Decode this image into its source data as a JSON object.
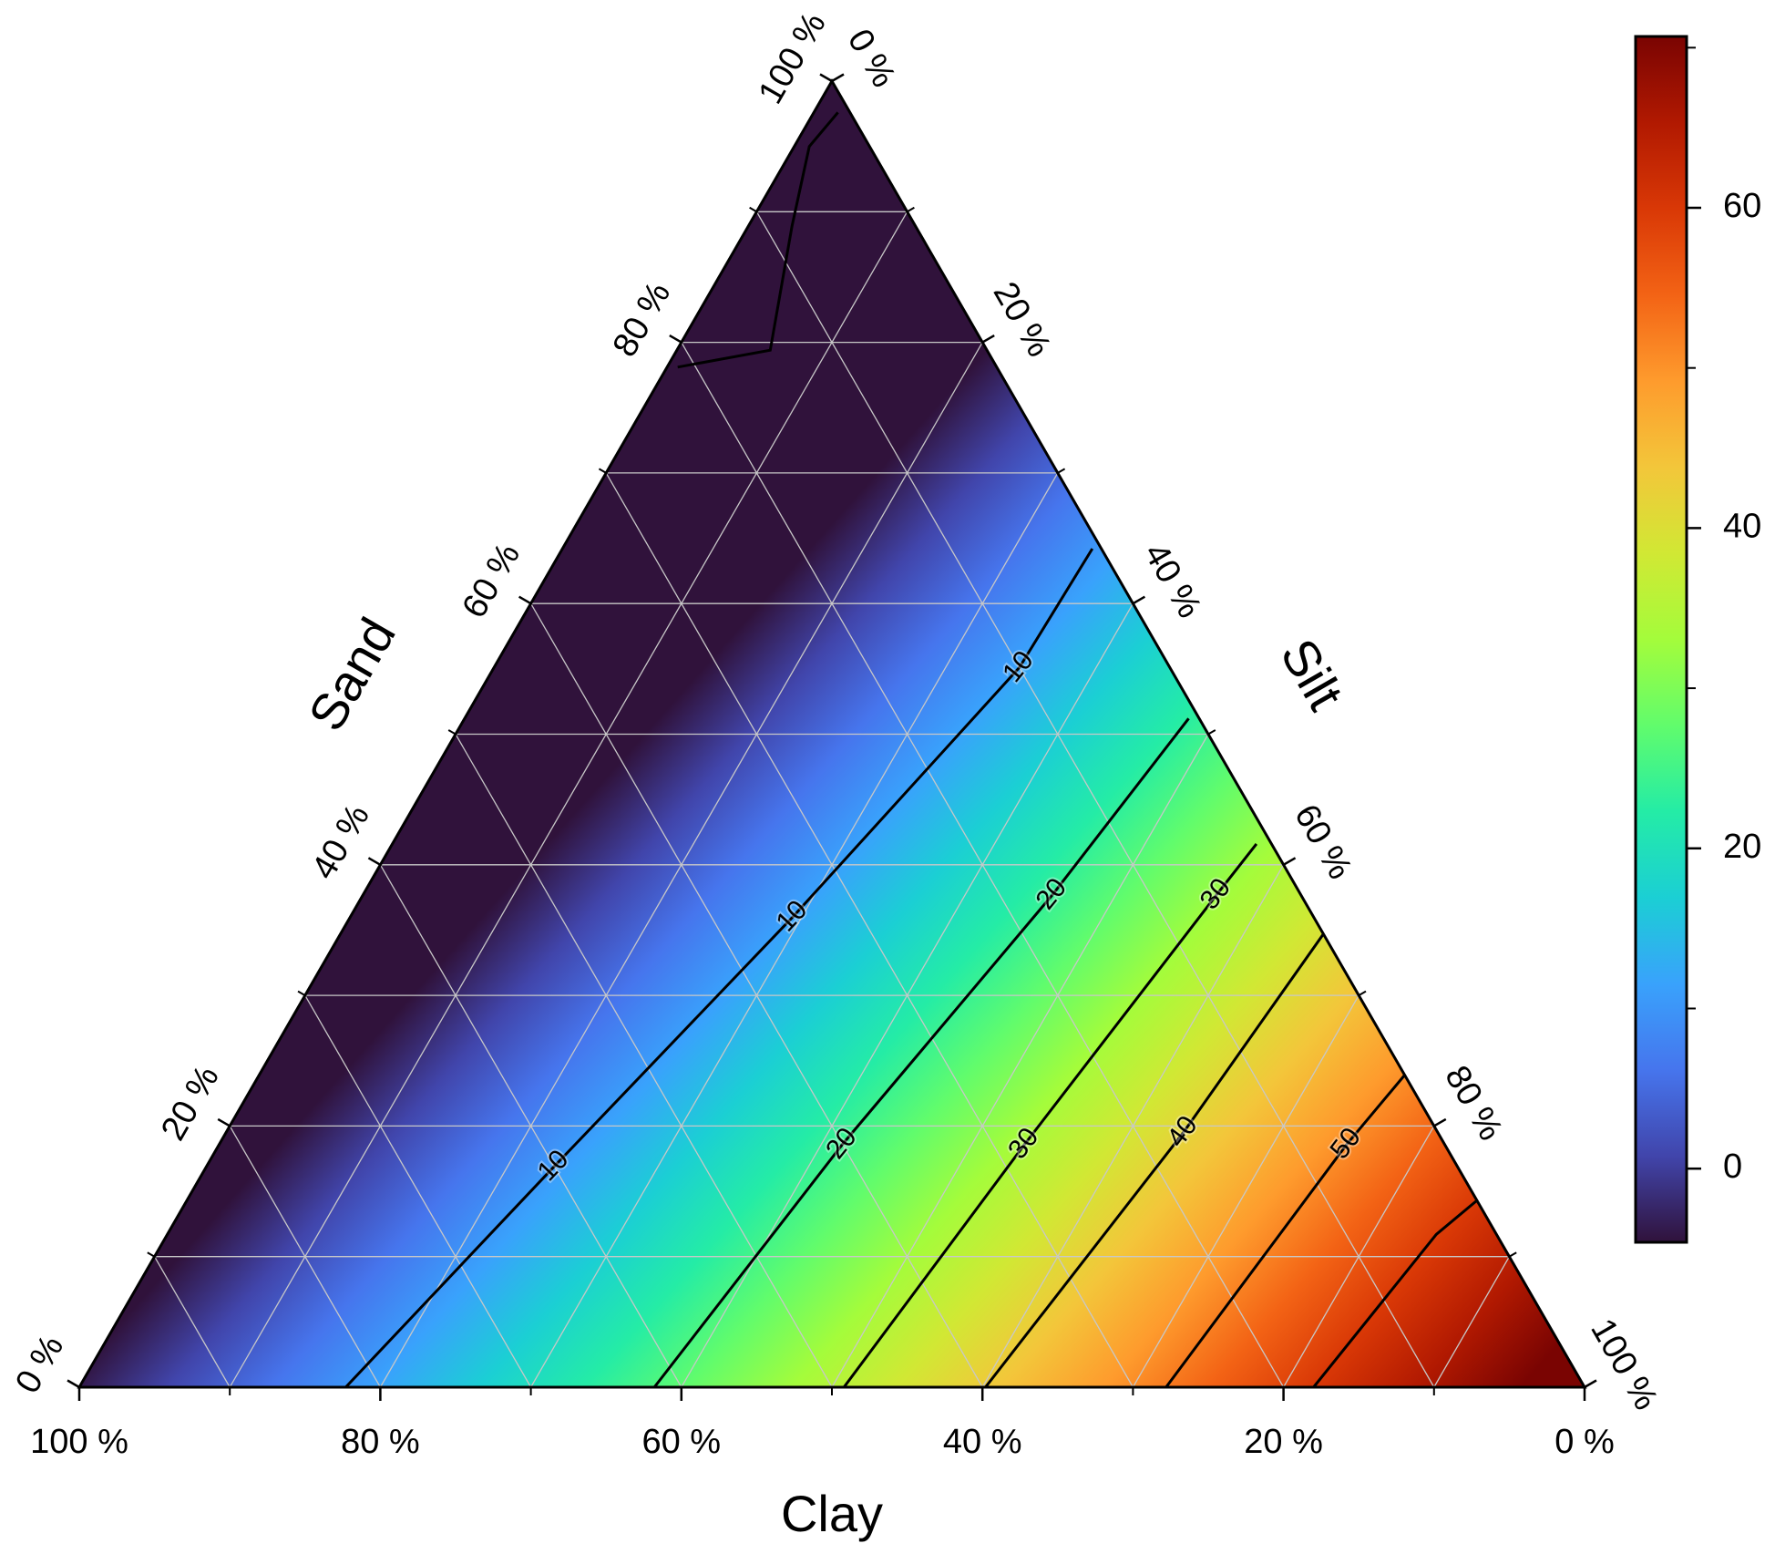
{
  "chart_data": {
    "type": "ternary-contour",
    "grid": true,
    "axes": {
      "clay": {
        "title": "Clay",
        "ticks": [
          {
            "value": 100,
            "label": "100 %"
          },
          {
            "value": 80,
            "label": "80 %"
          },
          {
            "value": 60,
            "label": "60 %"
          },
          {
            "value": 40,
            "label": "40 %"
          },
          {
            "value": 20,
            "label": "20 %"
          },
          {
            "value": 0,
            "label": "0 %"
          }
        ]
      },
      "sand": {
        "title": "Sand",
        "ticks": [
          {
            "value": 0,
            "label": "0 %"
          },
          {
            "value": 20,
            "label": "20 %"
          },
          {
            "value": 40,
            "label": "40 %"
          },
          {
            "value": 60,
            "label": "60 %"
          },
          {
            "value": 80,
            "label": "80 %"
          },
          {
            "value": 100,
            "label": "100 %"
          }
        ]
      },
      "silt": {
        "title": "Silt",
        "ticks": [
          {
            "value": 0,
            "label": "0 %"
          },
          {
            "value": 20,
            "label": "20 %"
          },
          {
            "value": 40,
            "label": "40 %"
          },
          {
            "value": 60,
            "label": "60 %"
          },
          {
            "value": 80,
            "label": "80 %"
          },
          {
            "value": 100,
            "label": "100 %"
          }
        ]
      }
    },
    "contours": [
      {
        "level": 0,
        "points": [
          [
            21.2,
            0.7
          ],
          [
            14.4,
            6.2
          ],
          [
            8.2,
            2.9
          ],
          [
            4,
            1
          ],
          [
            0.8,
            1.6
          ]
        ]
      },
      {
        "level": 10,
        "points": [
          [
            82.3,
            17.7
          ],
          [
            60,
            23.1
          ],
          [
            34.6,
            29.4
          ],
          [
            10,
            34.9
          ],
          [
            0.6,
            35.2
          ]
        ],
        "labels": [
          10,
          10,
          10
        ]
      },
      {
        "level": 20,
        "points": [
          [
            61.8,
            38.2
          ],
          [
            40,
            41.4
          ],
          [
            16.5,
            45.8
          ],
          [
            0.7,
            48.1
          ]
        ],
        "labels": [
          20,
          20
        ]
      },
      {
        "level": 30,
        "points": [
          [
            49.2,
            50.8
          ],
          [
            27.9,
            53.5
          ],
          [
            5.6,
            56.7
          ],
          [
            1,
            57.4
          ]
        ],
        "labels": [
          30,
          30
        ]
      },
      {
        "level": 40,
        "points": [
          [
            39.8,
            60.2
          ],
          [
            16.9,
            63.6
          ],
          [
            0,
            65.3
          ]
        ],
        "labels": [
          40
        ]
      },
      {
        "level": 50,
        "points": [
          [
            27.8,
            72.2
          ],
          [
            6.5,
            74.9
          ],
          [
            0,
            76.1
          ]
        ],
        "labels": [
          50
        ]
      },
      {
        "level": 60,
        "points": [
          [
            18,
            82
          ],
          [
            4,
            84.3
          ],
          [
            0,
            85.7
          ]
        ]
      }
    ],
    "colorbar": {
      "clim": [
        -4.6,
        70.7
      ],
      "ticks": [
        0,
        20,
        40,
        60
      ]
    }
  }
}
